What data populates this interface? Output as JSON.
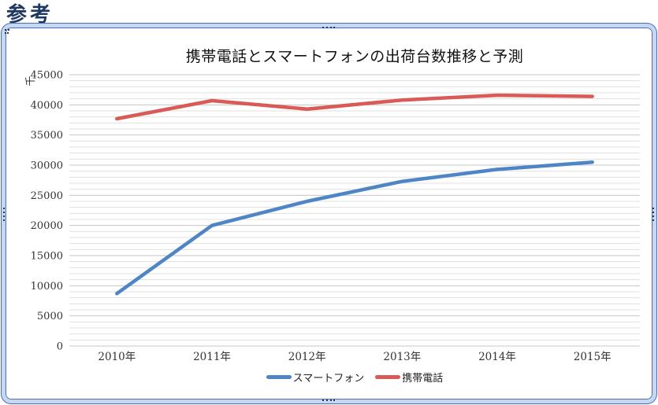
{
  "page": {
    "heading": "参考"
  },
  "chart_data": {
    "type": "line",
    "title": "携帯電話とスマートフォンの出荷台数推移と予測",
    "unit_label": "千",
    "categories": [
      "2010年",
      "2011年",
      "2012年",
      "2013年",
      "2014年",
      "2015年"
    ],
    "series": [
      {
        "name": "スマートフォン",
        "color": "#4E85C6",
        "values": [
          8700,
          20000,
          24000,
          27300,
          29300,
          30500
        ]
      },
      {
        "name": "携帯電話",
        "color": "#D95A56",
        "values": [
          37700,
          40700,
          39300,
          40800,
          41600,
          41400
        ]
      }
    ],
    "ylim": [
      0,
      45000
    ],
    "y_major_step": 5000,
    "y_minor_step": 1000,
    "grid": true,
    "legend_position": "bottom"
  },
  "frame": {
    "fill_color": "#C5D7F1",
    "edge_color": "#4A6EB5",
    "handle_color": "#1F3864"
  },
  "colors": {
    "heading": "#1F3864",
    "grid_major": "#C4C4C4",
    "grid_minor": "#E0E0E0",
    "text": "#333333"
  }
}
